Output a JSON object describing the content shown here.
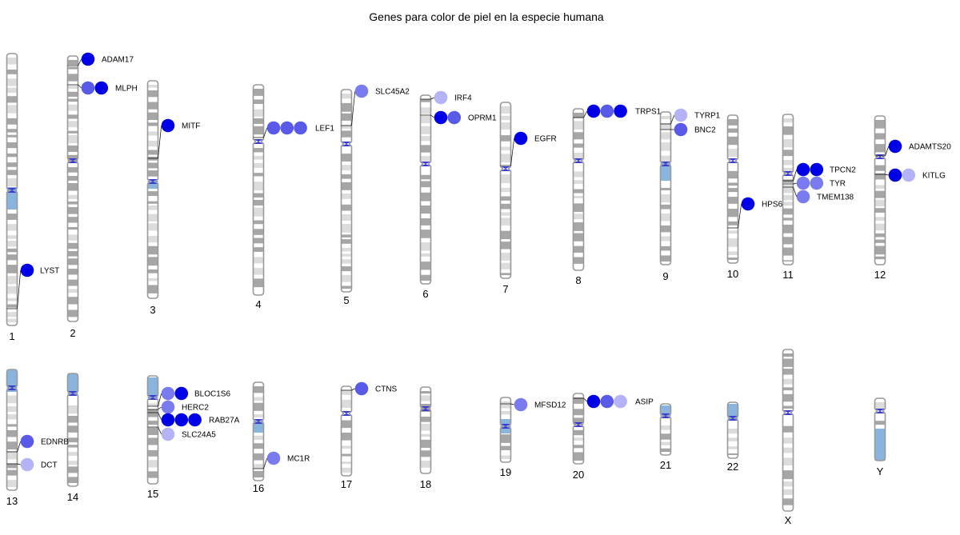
{
  "title": "Genes para color de piel en la especie humana",
  "colors": {
    "strong": "#0000e6",
    "medium": "#5a5ae8",
    "light": "#7b7bf0",
    "pale": "#b3b3f5",
    "band_dark": "#a6a6a6",
    "band_light": "#dcdcdc",
    "centromere": "#3a3ad0",
    "heterochromatin": "#88b4de"
  },
  "chromosomes": [
    {
      "name": "1"
    },
    {
      "name": "2"
    },
    {
      "name": "3"
    },
    {
      "name": "4"
    },
    {
      "name": "5"
    },
    {
      "name": "6"
    },
    {
      "name": "7"
    },
    {
      "name": "8"
    },
    {
      "name": "9"
    },
    {
      "name": "10"
    },
    {
      "name": "11"
    },
    {
      "name": "12"
    },
    {
      "name": "13"
    },
    {
      "name": "14"
    },
    {
      "name": "15"
    },
    {
      "name": "16"
    },
    {
      "name": "17"
    },
    {
      "name": "18"
    },
    {
      "name": "19"
    },
    {
      "name": "20"
    },
    {
      "name": "21"
    },
    {
      "name": "22"
    },
    {
      "name": "X"
    },
    {
      "name": "Y"
    }
  ],
  "genes": [
    {
      "name": "LYST",
      "chromosome": "1",
      "markers": [
        "strong"
      ]
    },
    {
      "name": "ADAM17",
      "chromosome": "2",
      "markers": [
        "strong"
      ]
    },
    {
      "name": "MLPH",
      "chromosome": "2",
      "markers": [
        "medium",
        "strong"
      ]
    },
    {
      "name": "MITF",
      "chromosome": "3",
      "markers": [
        "strong"
      ]
    },
    {
      "name": "LEF1",
      "chromosome": "4",
      "markers": [
        "medium",
        "medium",
        "medium"
      ]
    },
    {
      "name": "SLC45A2",
      "chromosome": "5",
      "markers": [
        "light"
      ]
    },
    {
      "name": "IRF4",
      "chromosome": "6",
      "markers": [
        "pale"
      ]
    },
    {
      "name": "OPRM1",
      "chromosome": "6",
      "markers": [
        "strong",
        "medium"
      ]
    },
    {
      "name": "EGFR",
      "chromosome": "7",
      "markers": [
        "strong"
      ]
    },
    {
      "name": "TRPS1",
      "chromosome": "8",
      "markers": [
        "strong",
        "medium",
        "strong"
      ]
    },
    {
      "name": "TYRP1",
      "chromosome": "9",
      "markers": [
        "pale"
      ]
    },
    {
      "name": "BNC2",
      "chromosome": "9",
      "markers": [
        "medium"
      ]
    },
    {
      "name": "HPS6",
      "chromosome": "10",
      "markers": [
        "strong"
      ]
    },
    {
      "name": "TPCN2",
      "chromosome": "11",
      "markers": [
        "strong",
        "strong"
      ]
    },
    {
      "name": "TYR",
      "chromosome": "11",
      "markers": [
        "light",
        "light"
      ]
    },
    {
      "name": "TMEM138",
      "chromosome": "11",
      "markers": [
        "light"
      ]
    },
    {
      "name": "ADAMTS20",
      "chromosome": "12",
      "markers": [
        "strong"
      ]
    },
    {
      "name": "KITLG",
      "chromosome": "12",
      "markers": [
        "strong",
        "pale"
      ]
    },
    {
      "name": "EDNRB",
      "chromosome": "13",
      "markers": [
        "medium"
      ]
    },
    {
      "name": "DCT",
      "chromosome": "13",
      "markers": [
        "pale"
      ]
    },
    {
      "name": "BLOC1S6",
      "chromosome": "15",
      "markers": [
        "light",
        "strong"
      ]
    },
    {
      "name": "HERC2",
      "chromosome": "15",
      "markers": [
        "light"
      ]
    },
    {
      "name": "RAB27A",
      "chromosome": "15",
      "markers": [
        "strong",
        "strong",
        "strong"
      ]
    },
    {
      "name": "SLC24A5",
      "chromosome": "15",
      "markers": [
        "pale"
      ]
    },
    {
      "name": "MC1R",
      "chromosome": "16",
      "markers": [
        "light"
      ]
    },
    {
      "name": "CTNS",
      "chromosome": "17",
      "markers": [
        "medium"
      ]
    },
    {
      "name": "MFSD12",
      "chromosome": "19",
      "markers": [
        "light"
      ]
    },
    {
      "name": "ASIP",
      "chromosome": "20",
      "markers": [
        "strong",
        "medium",
        "pale"
      ]
    }
  ]
}
